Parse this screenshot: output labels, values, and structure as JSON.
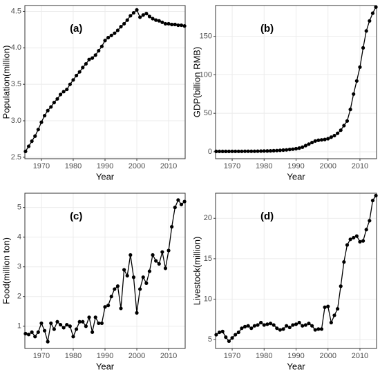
{
  "chart_data": [
    {
      "type": "line",
      "annotation": "(a)",
      "xlabel": "Year",
      "ylabel": "Population(million)",
      "color": "#000000",
      "grid": true,
      "x": [
        1965,
        1966,
        1967,
        1968,
        1969,
        1970,
        1971,
        1972,
        1973,
        1974,
        1975,
        1976,
        1977,
        1978,
        1979,
        1980,
        1981,
        1982,
        1983,
        1984,
        1985,
        1986,
        1987,
        1988,
        1989,
        1990,
        1991,
        1992,
        1993,
        1994,
        1995,
        1996,
        1997,
        1998,
        1999,
        2000,
        2001,
        2002,
        2003,
        2004,
        2005,
        2006,
        2007,
        2008,
        2009,
        2010,
        2011,
        2012,
        2013,
        2014,
        2015
      ],
      "values": [
        2.58,
        2.65,
        2.72,
        2.79,
        2.88,
        2.98,
        3.07,
        3.14,
        3.19,
        3.25,
        3.3,
        3.36,
        3.4,
        3.43,
        3.5,
        3.56,
        3.62,
        3.67,
        3.73,
        3.78,
        3.84,
        3.86,
        3.9,
        3.96,
        4.02,
        4.1,
        4.14,
        4.17,
        4.2,
        4.24,
        4.29,
        4.33,
        4.38,
        4.44,
        4.48,
        4.52,
        4.42,
        4.45,
        4.47,
        4.43,
        4.4,
        4.38,
        4.37,
        4.35,
        4.33,
        4.33,
        4.32,
        4.32,
        4.31,
        4.31,
        4.3
      ],
      "xlim": [
        1964.8,
        2015.2
      ],
      "xticks": [
        1970,
        1980,
        1990,
        2000,
        2010
      ],
      "ylim": [
        2.48,
        4.58
      ],
      "yticks": [
        2.5,
        {
          "value": 3,
          "label": "3.0"
        },
        3.5,
        {
          "value": 4,
          "label": "4.0"
        },
        4.5
      ]
    },
    {
      "type": "line",
      "annotation": "(b)",
      "xlabel": "Year",
      "ylabel": "GDP(billion RMB)",
      "color": "#000000",
      "grid": true,
      "x": [
        1965,
        1966,
        1967,
        1968,
        1969,
        1970,
        1971,
        1972,
        1973,
        1974,
        1975,
        1976,
        1977,
        1978,
        1979,
        1980,
        1981,
        1982,
        1983,
        1984,
        1985,
        1986,
        1987,
        1988,
        1989,
        1990,
        1991,
        1992,
        1993,
        1994,
        1995,
        1996,
        1997,
        1998,
        1999,
        2000,
        2001,
        2002,
        2003,
        2004,
        2005,
        2006,
        2007,
        2008,
        2009,
        2010,
        2011,
        2012,
        2013,
        2014,
        2015
      ],
      "values": [
        0.5,
        0.5,
        0.5,
        0.5,
        0.5,
        0.6,
        0.6,
        0.6,
        0.6,
        0.7,
        0.7,
        0.7,
        0.7,
        0.8,
        0.9,
        1.0,
        1.1,
        1.2,
        1.4,
        1.6,
        1.9,
        2.2,
        2.5,
        3.0,
        3.4,
        4.0,
        4.8,
        6.0,
        8.0,
        10.0,
        12.0,
        14.0,
        15.0,
        15.5,
        16.0,
        17.0,
        19.0,
        21.0,
        24.0,
        28.0,
        34.0,
        40.0,
        55.0,
        75.0,
        92.0,
        110.0,
        135.0,
        157.0,
        170.0,
        180.0,
        188.0
      ],
      "xlim": [
        1964.8,
        2015.2
      ],
      "xticks": [
        1970,
        1980,
        1990,
        2000,
        2010
      ],
      "ylim": [
        -9,
        190
      ],
      "yticks": [
        0,
        50,
        100,
        150
      ]
    },
    {
      "type": "line",
      "annotation": "(c)",
      "xlabel": "Year",
      "ylabel": "Food(million ton)",
      "color": "#000000",
      "grid": true,
      "x": [
        1965,
        1966,
        1967,
        1968,
        1969,
        1970,
        1971,
        1972,
        1973,
        1974,
        1975,
        1976,
        1977,
        1978,
        1979,
        1980,
        1981,
        1982,
        1983,
        1984,
        1985,
        1986,
        1987,
        1988,
        1989,
        1990,
        1991,
        1992,
        1993,
        1994,
        1995,
        1996,
        1997,
        1998,
        1999,
        2000,
        2001,
        2002,
        2003,
        2004,
        2005,
        2006,
        2007,
        2008,
        2009,
        2010,
        2011,
        2012,
        2013,
        2014,
        2015
      ],
      "values": [
        0.75,
        0.72,
        0.8,
        0.65,
        0.8,
        1.1,
        0.85,
        0.48,
        1.1,
        0.9,
        1.15,
        1.05,
        0.95,
        1.05,
        1.0,
        0.65,
        0.9,
        1.15,
        1.15,
        1.0,
        1.3,
        0.8,
        1.3,
        1.1,
        1.1,
        1.65,
        1.7,
        2.0,
        2.25,
        2.35,
        1.6,
        2.9,
        2.7,
        3.4,
        2.65,
        1.45,
        2.25,
        2.65,
        2.45,
        2.85,
        3.4,
        3.2,
        3.1,
        3.5,
        2.95,
        3.55,
        4.35,
        5.0,
        5.25,
        5.1,
        5.2
      ],
      "xlim": [
        1964.8,
        2015.2
      ],
      "xticks": [
        1970,
        1980,
        1990,
        2000,
        2010
      ],
      "ylim": [
        0.25,
        5.48
      ],
      "yticks": [
        1,
        2,
        3,
        4,
        5
      ]
    },
    {
      "type": "line",
      "annotation": "(d)",
      "xlabel": "Year",
      "ylabel": "Livestock(million)",
      "color": "#000000",
      "grid": true,
      "x": [
        1965,
        1966,
        1967,
        1968,
        1969,
        1970,
        1971,
        1972,
        1973,
        1974,
        1975,
        1976,
        1977,
        1978,
        1979,
        1980,
        1981,
        1982,
        1983,
        1984,
        1985,
        1986,
        1987,
        1988,
        1989,
        1990,
        1991,
        1992,
        1993,
        1994,
        1995,
        1996,
        1997,
        1998,
        1999,
        2000,
        2001,
        2002,
        2003,
        2004,
        2005,
        2006,
        2007,
        2008,
        2009,
        2010,
        2011,
        2012,
        2013,
        2014,
        2015
      ],
      "values": [
        5.6,
        5.9,
        6.0,
        5.3,
        4.8,
        5.2,
        5.6,
        5.9,
        6.4,
        6.6,
        6.7,
        6.4,
        6.7,
        6.8,
        7.1,
        6.8,
        6.9,
        7.0,
        6.8,
        6.4,
        6.2,
        6.3,
        6.7,
        6.5,
        6.8,
        6.9,
        7.1,
        6.7,
        6.8,
        7.0,
        6.7,
        6.2,
        6.3,
        6.3,
        9.0,
        9.1,
        7.1,
        8.0,
        8.8,
        11.6,
        14.6,
        16.7,
        17.4,
        17.6,
        17.8,
        17.1,
        17.2,
        18.6,
        19.7,
        22.2,
        22.8
      ],
      "xlim": [
        1964.8,
        2015.2
      ],
      "xticks": [
        1970,
        1980,
        1990,
        2000,
        2010
      ],
      "ylim": [
        3.9,
        23.1
      ],
      "yticks": [
        5,
        10,
        15,
        20
      ]
    }
  ]
}
